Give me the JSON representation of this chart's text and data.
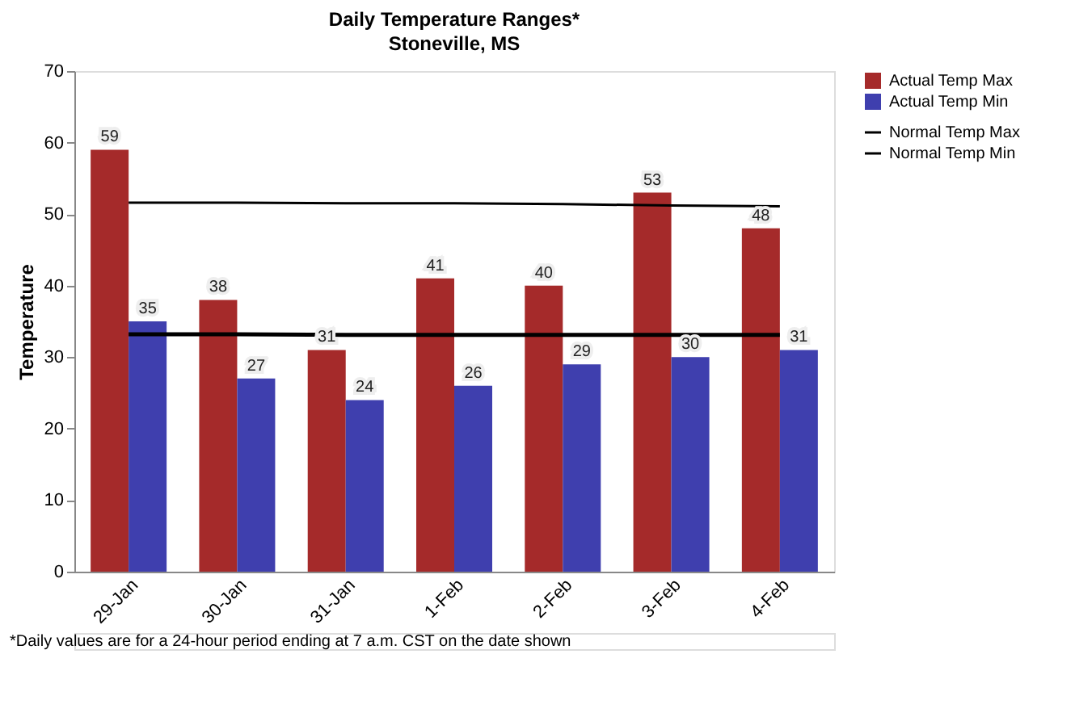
{
  "chart_data": {
    "type": "bar",
    "title": "Daily Temperature Ranges*",
    "subtitle": "Stoneville, MS",
    "ylabel": "Temperature",
    "categories": [
      "29-Jan",
      "30-Jan",
      "31-Jan",
      "1-Feb",
      "2-Feb",
      "3-Feb",
      "4-Feb"
    ],
    "series": [
      {
        "name": "Actual Temp Max",
        "color": "#a52a2a",
        "values": [
          59,
          38,
          31,
          41,
          40,
          53,
          48
        ],
        "value_labels": [
          "59",
          "38",
          "31",
          "41",
          "40",
          "53",
          "48"
        ]
      },
      {
        "name": "Actual Temp Min",
        "color": "#3f3fae",
        "values": [
          35,
          27,
          24,
          26,
          29,
          30,
          31
        ],
        "value_labels": [
          "35",
          "27",
          "24",
          "26",
          "29",
          "30",
          "31"
        ]
      },
      {
        "name": "Normal Temp Max",
        "type": "line",
        "color": "#000000",
        "values": [
          51.6,
          51.6,
          51.5,
          51.5,
          51.4,
          51.2,
          51.1
        ]
      },
      {
        "name": "Normal Temp Min",
        "type": "line",
        "color": "#000000",
        "values": [
          33.2,
          33.2,
          33.1,
          33.1,
          33.1,
          33.1,
          33.1
        ]
      }
    ],
    "ylim": [
      0,
      70
    ],
    "yticks": [
      0,
      10,
      20,
      30,
      40,
      50,
      60,
      70
    ],
    "grid": false,
    "legend": "right",
    "annotations": [
      "*Daily values are for a 24-hour period ending at 7 a.m. CST on the date shown"
    ]
  }
}
